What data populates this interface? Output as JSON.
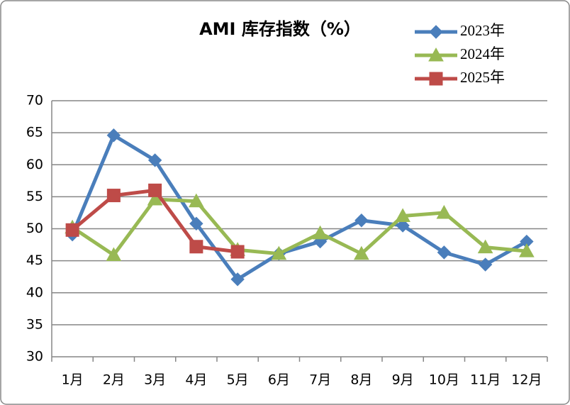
{
  "chart_data": {
    "type": "line",
    "title": "AMI 库存指数（%）",
    "categories": [
      "1月",
      "2月",
      "3月",
      "4月",
      "5月",
      "6月",
      "7月",
      "8月",
      "9月",
      "10月",
      "11月",
      "12月"
    ],
    "series": [
      {
        "name": "2023年",
        "color": "#4a7ebb",
        "marker": "diamond",
        "values": [
          49.1,
          64.6,
          60.7,
          50.8,
          42.1,
          46.1,
          48.0,
          51.3,
          50.5,
          46.3,
          44.4,
          48.0
        ]
      },
      {
        "name": "2024年",
        "color": "#98b954",
        "marker": "triangle",
        "values": [
          50.2,
          45.9,
          54.6,
          54.3,
          46.7,
          46.1,
          49.3,
          46.1,
          52.0,
          52.5,
          47.1,
          46.5
        ]
      },
      {
        "name": "2025年",
        "color": "#be4b48",
        "marker": "square",
        "values": [
          49.8,
          55.2,
          56.0,
          47.2,
          46.4,
          null,
          null,
          null,
          null,
          null,
          null,
          null
        ]
      }
    ],
    "ylim": [
      30,
      70
    ],
    "yticks": [
      30,
      35,
      40,
      45,
      50,
      55,
      60,
      65,
      70
    ],
    "grid": true,
    "legend": "top-right"
  }
}
